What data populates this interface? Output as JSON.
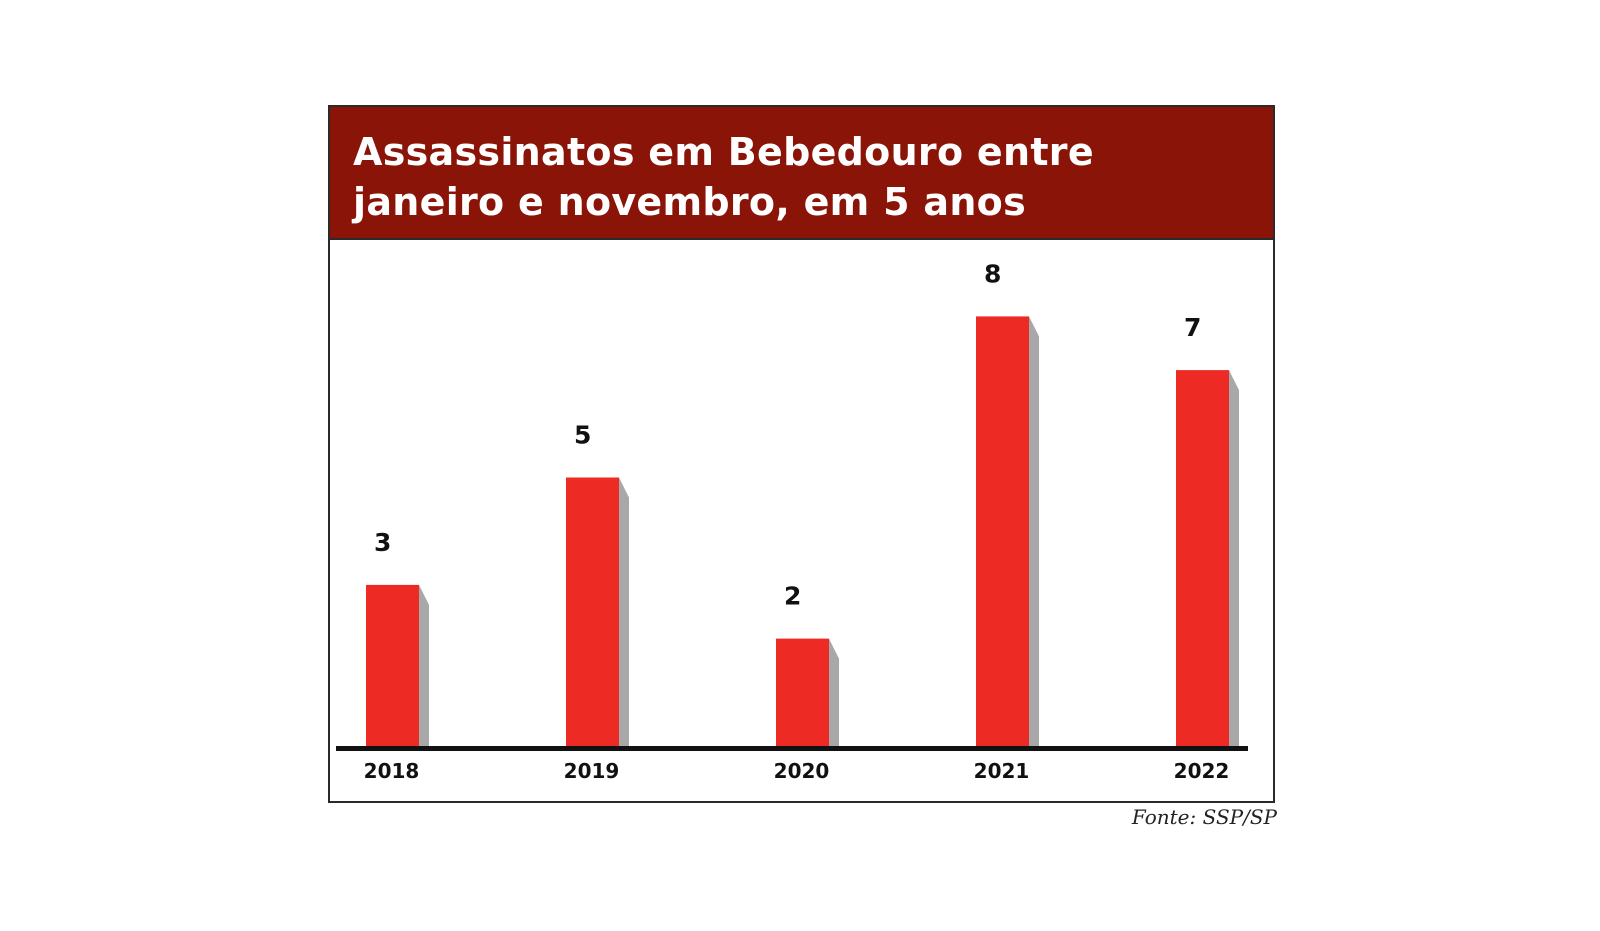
{
  "header": {
    "title": "Assassinatos em Bebedouro entre janeiro e novembro, em 5 anos"
  },
  "source": "Fonte: SSP/SP",
  "colors": {
    "header": "#8b1408",
    "bar": "#ee2a24",
    "shadow": "#a8a8a8",
    "baseline": "#111111"
  },
  "chart_data": {
    "type": "bar",
    "title": "Assassinatos em Bebedouro entre janeiro e novembro, em 5 anos",
    "categories": [
      "2018",
      "2019",
      "2020",
      "2021",
      "2022"
    ],
    "values": [
      3,
      5,
      2,
      8,
      7
    ],
    "data_labels": [
      "3",
      "5",
      "2",
      "8",
      "7"
    ],
    "ylim": [
      0,
      8
    ],
    "grid": false,
    "legend": "none"
  }
}
